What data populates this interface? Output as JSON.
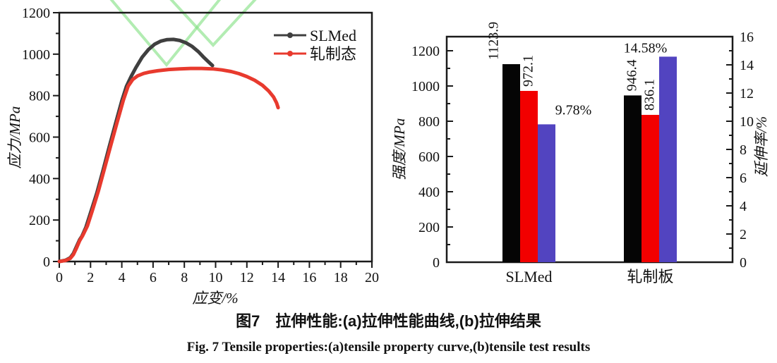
{
  "caption": {
    "zh": "图7　拉伸性能:(a)拉伸性能曲线,(b)拉伸结果",
    "en": "Fig. 7  Tensile properties:(a)tensile property curve,(b)tensile test results"
  },
  "colors": {
    "frame": "#1a1a1a",
    "curve_black": "#3f3f3f",
    "curve_red": "#e83a2e",
    "bar_black": "#050505",
    "bar_red": "#f20000",
    "bar_blue": "#5244c0",
    "watermark_green": "#7fdf7f"
  },
  "chart_data": [
    {
      "type": "line",
      "panel": "a",
      "title": "",
      "xlabel": "应变/%",
      "ylabel": "应力/MPa",
      "xlim": [
        0,
        20
      ],
      "ylim": [
        0,
        1200
      ],
      "xticks": [
        0,
        2,
        4,
        6,
        8,
        10,
        12,
        14,
        16,
        18,
        20
      ],
      "yticks": [
        0,
        200,
        400,
        600,
        800,
        1000,
        1200
      ],
      "grid": false,
      "legend_position": "top-right",
      "series": [
        {
          "name": "SLMed",
          "color": "#3f3f3f",
          "points": [
            [
              0,
              0
            ],
            [
              0.4,
              6
            ],
            [
              0.7,
              18
            ],
            [
              0.9,
              38
            ],
            [
              1.1,
              72
            ],
            [
              1.3,
              105
            ],
            [
              1.45,
              122
            ],
            [
              1.7,
              165
            ],
            [
              2.0,
              235
            ],
            [
              2.4,
              330
            ],
            [
              2.8,
              440
            ],
            [
              3.2,
              555
            ],
            [
              3.6,
              665
            ],
            [
              4.0,
              775
            ],
            [
              4.3,
              845
            ],
            [
              4.6,
              893
            ],
            [
              4.9,
              935
            ],
            [
              5.3,
              985
            ],
            [
              5.7,
              1022
            ],
            [
              6.1,
              1048
            ],
            [
              6.5,
              1063
            ],
            [
              6.9,
              1070
            ],
            [
              7.3,
              1071
            ],
            [
              7.7,
              1066
            ],
            [
              8.1,
              1055
            ],
            [
              8.5,
              1037
            ],
            [
              8.9,
              1012
            ],
            [
              9.2,
              988
            ],
            [
              9.5,
              966
            ],
            [
              9.7,
              952
            ],
            [
              9.8,
              945
            ]
          ]
        },
        {
          "name": "轧制态",
          "color": "#e83a2e",
          "points": [
            [
              0,
              0
            ],
            [
              0.4,
              5
            ],
            [
              0.7,
              15
            ],
            [
              0.9,
              33
            ],
            [
              1.1,
              65
            ],
            [
              1.3,
              100
            ],
            [
              1.5,
              125
            ],
            [
              1.8,
              172
            ],
            [
              2.1,
              242
            ],
            [
              2.5,
              340
            ],
            [
              2.9,
              450
            ],
            [
              3.3,
              562
            ],
            [
              3.7,
              672
            ],
            [
              4.1,
              778
            ],
            [
              4.4,
              845
            ],
            [
              4.7,
              878
            ],
            [
              5.0,
              895
            ],
            [
              5.4,
              907
            ],
            [
              5.8,
              914
            ],
            [
              6.3,
              920
            ],
            [
              7.0,
              926
            ],
            [
              7.7,
              929
            ],
            [
              8.4,
              931
            ],
            [
              9.1,
              931
            ],
            [
              9.8,
              929
            ],
            [
              10.4,
              924
            ],
            [
              11.0,
              916
            ],
            [
              11.5,
              906
            ],
            [
              12.0,
              892
            ],
            [
              12.5,
              874
            ],
            [
              13.0,
              850
            ],
            [
              13.4,
              822
            ],
            [
              13.7,
              794
            ],
            [
              13.9,
              765
            ],
            [
              14.0,
              742
            ]
          ]
        }
      ]
    },
    {
      "type": "bar",
      "panel": "b",
      "title": "",
      "categories": [
        "SLMed",
        "轧制板"
      ],
      "ylabel_left": "强度/MPa",
      "ylabel_right": "延伸率/%",
      "ylim_left": [
        0,
        1280
      ],
      "ylim_right": [
        0,
        16
      ],
      "yticks_left": [
        0,
        200,
        400,
        600,
        800,
        1000,
        1200
      ],
      "yticks_right": [
        0,
        2,
        4,
        6,
        8,
        10,
        12,
        14,
        16
      ],
      "grid": false,
      "series": [
        {
          "id": "strength-dark",
          "axis": "left",
          "color": "#050505",
          "values": [
            1123.9,
            946.4
          ],
          "labels": [
            "1123.9",
            "946.4"
          ],
          "label_rotated": true
        },
        {
          "id": "strength-red",
          "axis": "left",
          "color": "#f20000",
          "values": [
            972.1,
            836.1
          ],
          "labels": [
            "972.1",
            "836.1"
          ],
          "label_rotated": true
        },
        {
          "id": "elongation-blue",
          "axis": "right",
          "color": "#5244c0",
          "values": [
            9.78,
            14.58
          ],
          "labels": [
            "9.78%",
            "14.58%"
          ],
          "label_rotated": false
        }
      ]
    }
  ]
}
